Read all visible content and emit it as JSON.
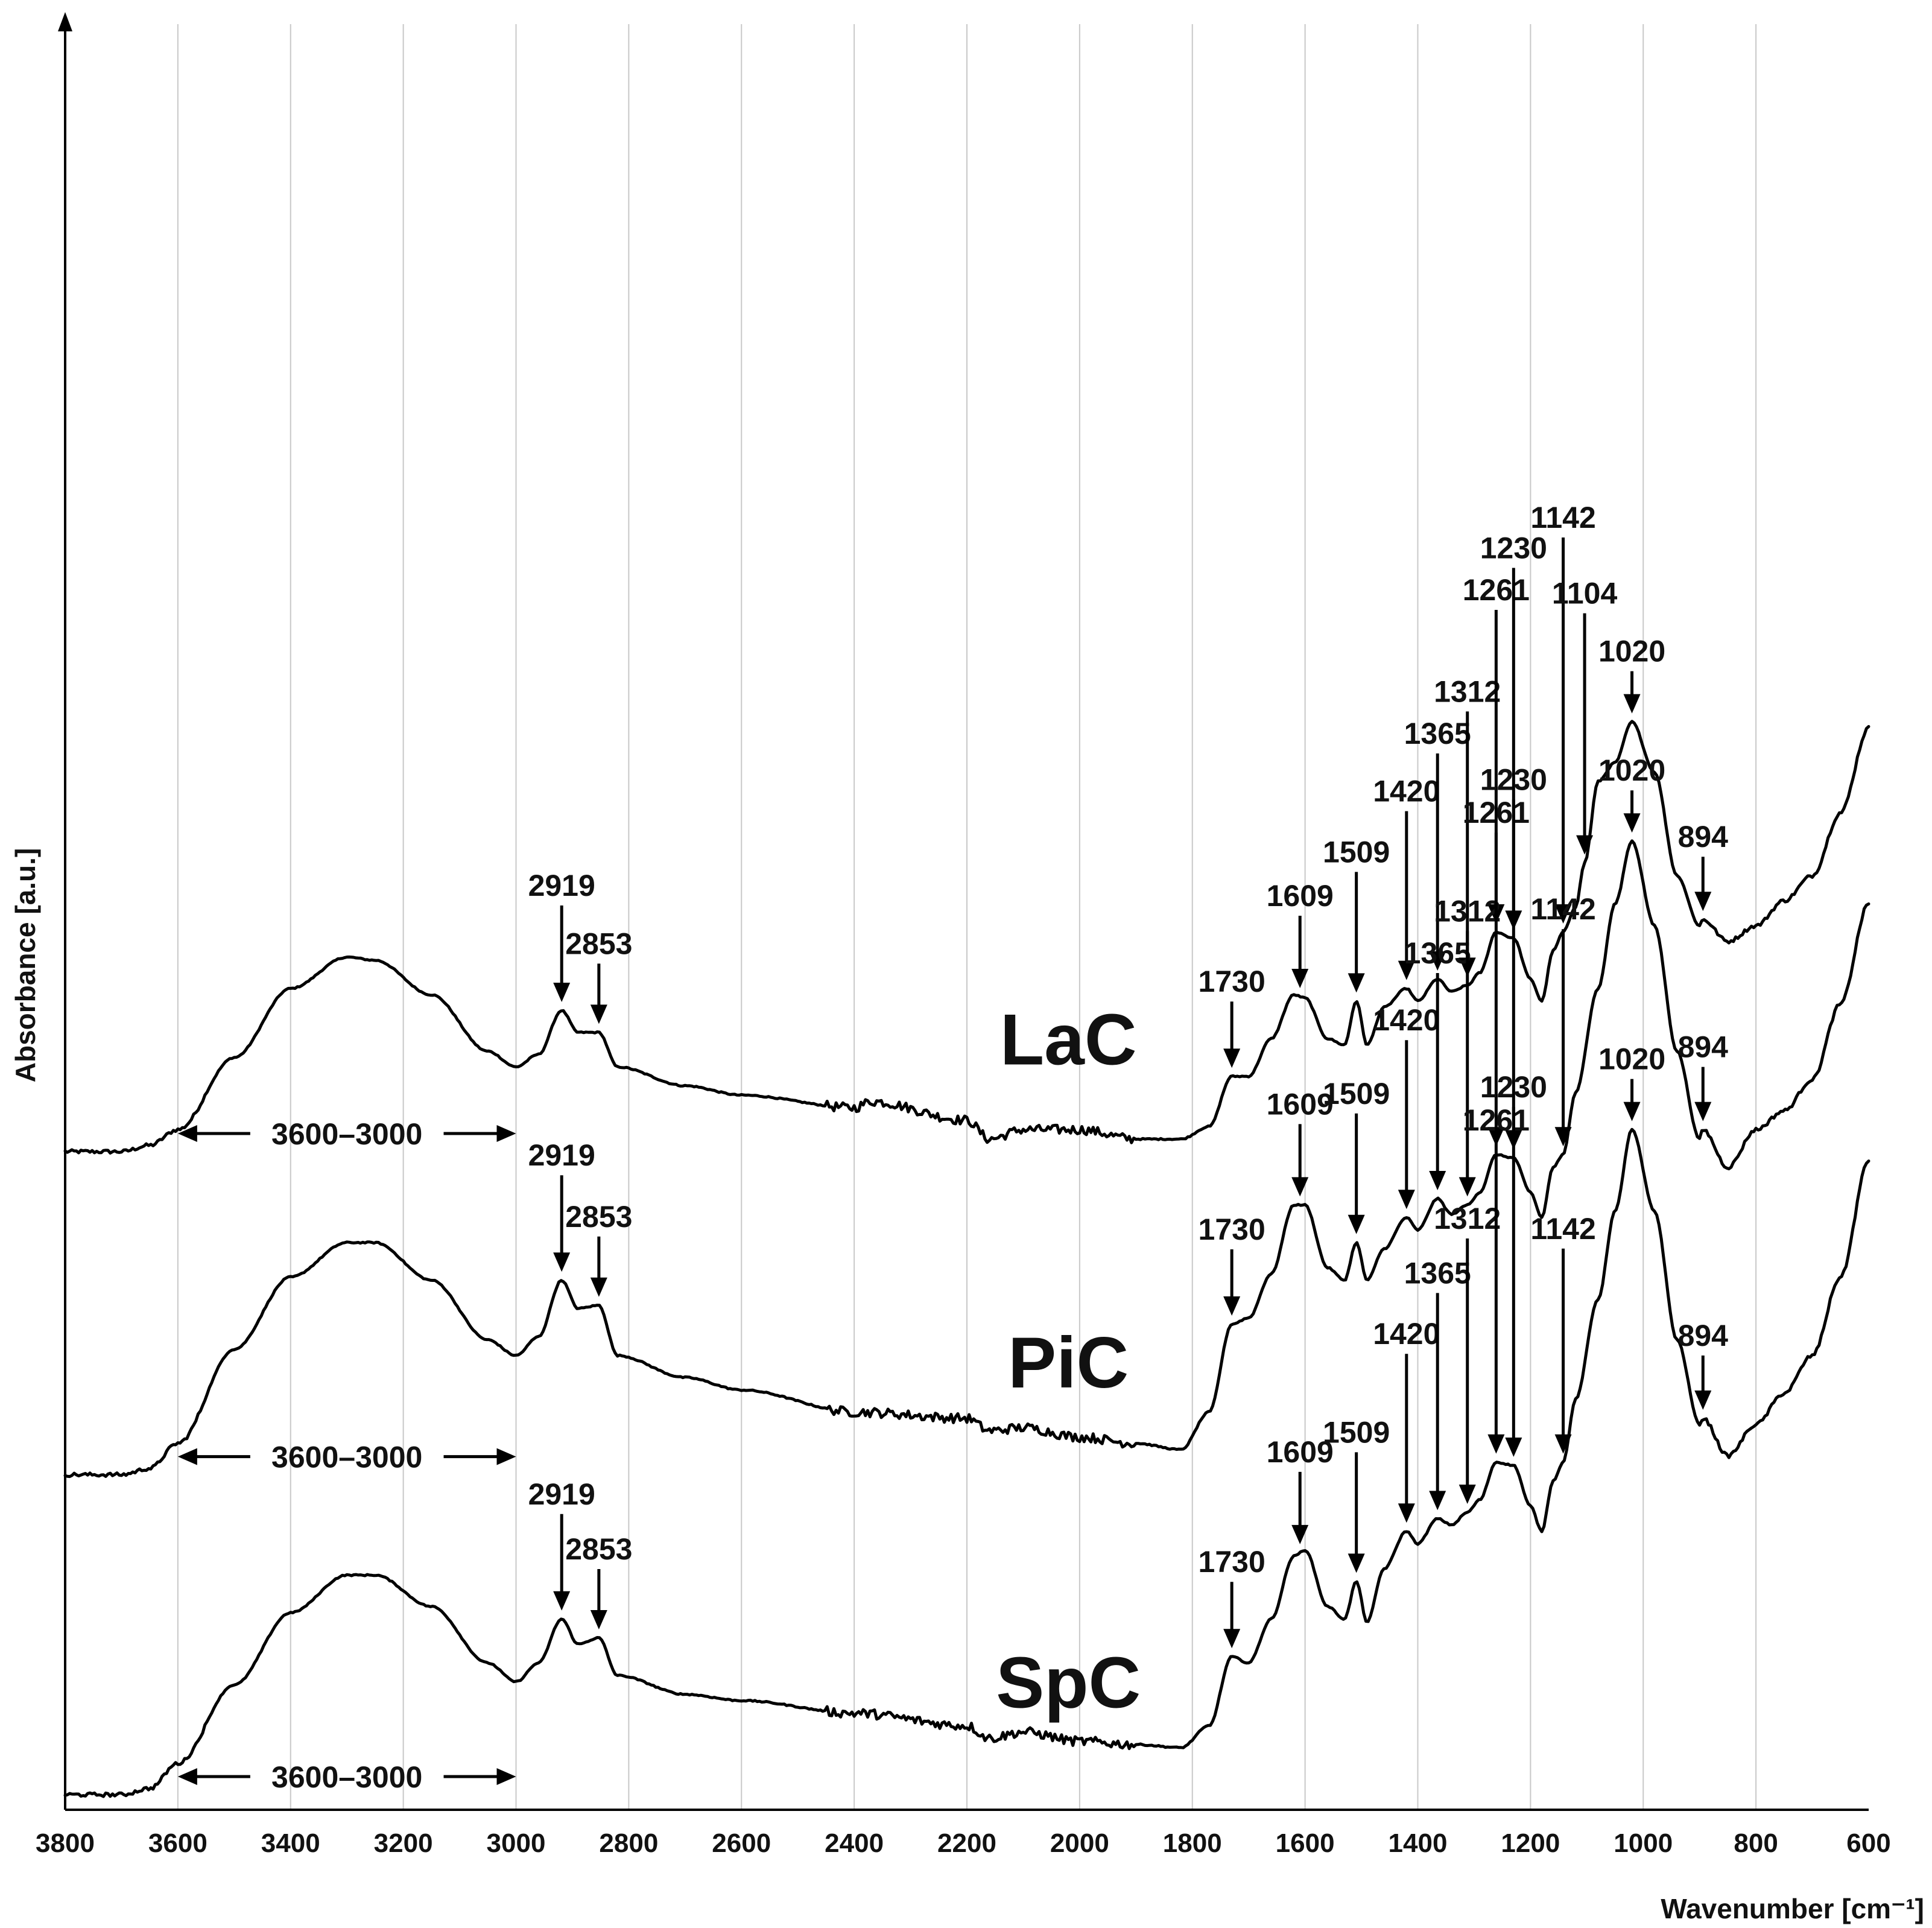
{
  "chart_data": {
    "type": "line",
    "title": "",
    "xlabel": "Wavenumber [cm⁻¹]",
    "ylabel": "Absorbance [a.u.]",
    "xlim": [
      3800,
      600
    ],
    "x_reversed": true,
    "grid": true,
    "x_ticks": [
      "3800",
      "3600",
      "3400",
      "3200",
      "3000",
      "2800",
      "2600",
      "2400",
      "2200",
      "2000",
      "1800",
      "1600",
      "1400",
      "1200",
      "1000",
      "800",
      "600"
    ],
    "x_tick_values": [
      3800,
      3600,
      3400,
      3200,
      3000,
      2800,
      2600,
      2400,
      2200,
      2000,
      1800,
      1600,
      1400,
      1200,
      1000,
      800,
      600
    ],
    "range_annotation": "3600–3000",
    "range_bounds": [
      3600,
      3000
    ],
    "series": [
      {
        "name": "LaC",
        "offset": 2.05,
        "points": [
          [
            3800,
            0.0
          ],
          [
            3700,
            0.0
          ],
          [
            3650,
            0.02
          ],
          [
            3600,
            0.07
          ],
          [
            3500,
            0.3
          ],
          [
            3400,
            0.52
          ],
          [
            3300,
            0.62
          ],
          [
            3250,
            0.61
          ],
          [
            3150,
            0.5
          ],
          [
            3050,
            0.32
          ],
          [
            3000,
            0.27
          ],
          [
            2960,
            0.31
          ],
          [
            2919,
            0.45
          ],
          [
            2890,
            0.38
          ],
          [
            2853,
            0.38
          ],
          [
            2820,
            0.27
          ],
          [
            2700,
            0.21
          ],
          [
            2600,
            0.18
          ],
          [
            2400,
            0.14
          ],
          [
            2370,
            0.16
          ],
          [
            2200,
            0.1
          ],
          [
            2160,
            0.04
          ],
          [
            2100,
            0.07
          ],
          [
            2000,
            0.07
          ],
          [
            1900,
            0.04
          ],
          [
            1820,
            0.04
          ],
          [
            1770,
            0.08
          ],
          [
            1730,
            0.24
          ],
          [
            1700,
            0.24
          ],
          [
            1660,
            0.36
          ],
          [
            1620,
            0.5
          ],
          [
            1600,
            0.49
          ],
          [
            1560,
            0.36
          ],
          [
            1530,
            0.34
          ],
          [
            1509,
            0.48
          ],
          [
            1490,
            0.34
          ],
          [
            1460,
            0.46
          ],
          [
            1420,
            0.52
          ],
          [
            1400,
            0.48
          ],
          [
            1365,
            0.55
          ],
          [
            1340,
            0.51
          ],
          [
            1312,
            0.53
          ],
          [
            1290,
            0.57
          ],
          [
            1261,
            0.7
          ],
          [
            1230,
            0.68
          ],
          [
            1200,
            0.55
          ],
          [
            1180,
            0.48
          ],
          [
            1160,
            0.64
          ],
          [
            1142,
            0.7
          ],
          [
            1120,
            0.78
          ],
          [
            1104,
            0.92
          ],
          [
            1080,
            1.18
          ],
          [
            1050,
            1.24
          ],
          [
            1020,
            1.37
          ],
          [
            980,
            1.21
          ],
          [
            940,
            0.88
          ],
          [
            900,
            0.72
          ],
          [
            894,
            0.74
          ],
          [
            850,
            0.67
          ],
          [
            800,
            0.72
          ],
          [
            750,
            0.8
          ],
          [
            700,
            0.88
          ],
          [
            650,
            1.08
          ],
          [
            600,
            1.35
          ]
        ]
      },
      {
        "name": "PiC",
        "offset": 1.02,
        "points": [
          [
            3800,
            0.0
          ],
          [
            3700,
            0.0
          ],
          [
            3650,
            0.02
          ],
          [
            3600,
            0.1
          ],
          [
            3500,
            0.4
          ],
          [
            3400,
            0.63
          ],
          [
            3300,
            0.74
          ],
          [
            3250,
            0.74
          ],
          [
            3150,
            0.62
          ],
          [
            3050,
            0.43
          ],
          [
            3000,
            0.38
          ],
          [
            2960,
            0.44
          ],
          [
            2919,
            0.62
          ],
          [
            2890,
            0.53
          ],
          [
            2853,
            0.54
          ],
          [
            2820,
            0.38
          ],
          [
            2700,
            0.31
          ],
          [
            2600,
            0.27
          ],
          [
            2400,
            0.2
          ],
          [
            2200,
            0.18
          ],
          [
            2160,
            0.14
          ],
          [
            2100,
            0.15
          ],
          [
            2000,
            0.12
          ],
          [
            1900,
            0.1
          ],
          [
            1820,
            0.08
          ],
          [
            1770,
            0.2
          ],
          [
            1730,
            0.48
          ],
          [
            1700,
            0.5
          ],
          [
            1660,
            0.64
          ],
          [
            1620,
            0.86
          ],
          [
            1600,
            0.86
          ],
          [
            1560,
            0.66
          ],
          [
            1530,
            0.62
          ],
          [
            1509,
            0.74
          ],
          [
            1490,
            0.62
          ],
          [
            1460,
            0.72
          ],
          [
            1420,
            0.82
          ],
          [
            1400,
            0.78
          ],
          [
            1365,
            0.88
          ],
          [
            1340,
            0.83
          ],
          [
            1312,
            0.86
          ],
          [
            1290,
            0.9
          ],
          [
            1261,
            1.02
          ],
          [
            1230,
            1.01
          ],
          [
            1200,
            0.9
          ],
          [
            1180,
            0.82
          ],
          [
            1160,
            0.98
          ],
          [
            1142,
            1.02
          ],
          [
            1120,
            1.22
          ],
          [
            1080,
            1.55
          ],
          [
            1050,
            1.82
          ],
          [
            1020,
            2.02
          ],
          [
            980,
            1.75
          ],
          [
            940,
            1.35
          ],
          [
            900,
            1.07
          ],
          [
            894,
            1.1
          ],
          [
            850,
            0.98
          ],
          [
            800,
            1.1
          ],
          [
            750,
            1.16
          ],
          [
            700,
            1.26
          ],
          [
            650,
            1.5
          ],
          [
            600,
            1.82
          ]
        ]
      },
      {
        "name": "SpC",
        "offset": 0.0,
        "points": [
          [
            3800,
            0.0
          ],
          [
            3700,
            0.0
          ],
          [
            3650,
            0.02
          ],
          [
            3600,
            0.1
          ],
          [
            3500,
            0.35
          ],
          [
            3400,
            0.58
          ],
          [
            3300,
            0.7
          ],
          [
            3250,
            0.7
          ],
          [
            3150,
            0.6
          ],
          [
            3050,
            0.42
          ],
          [
            3000,
            0.36
          ],
          [
            2960,
            0.42
          ],
          [
            2919,
            0.56
          ],
          [
            2890,
            0.48
          ],
          [
            2853,
            0.5
          ],
          [
            2820,
            0.38
          ],
          [
            2700,
            0.32
          ],
          [
            2600,
            0.3
          ],
          [
            2400,
            0.26
          ],
          [
            2200,
            0.22
          ],
          [
            2160,
            0.18
          ],
          [
            2100,
            0.2
          ],
          [
            2000,
            0.17
          ],
          [
            1900,
            0.16
          ],
          [
            1820,
            0.15
          ],
          [
            1770,
            0.22
          ],
          [
            1730,
            0.44
          ],
          [
            1700,
            0.42
          ],
          [
            1660,
            0.56
          ],
          [
            1620,
            0.76
          ],
          [
            1600,
            0.78
          ],
          [
            1560,
            0.6
          ],
          [
            1530,
            0.56
          ],
          [
            1509,
            0.68
          ],
          [
            1490,
            0.55
          ],
          [
            1460,
            0.72
          ],
          [
            1420,
            0.84
          ],
          [
            1400,
            0.8
          ],
          [
            1365,
            0.88
          ],
          [
            1340,
            0.86
          ],
          [
            1312,
            0.9
          ],
          [
            1290,
            0.94
          ],
          [
            1261,
            1.06
          ],
          [
            1230,
            1.05
          ],
          [
            1200,
            0.92
          ],
          [
            1180,
            0.84
          ],
          [
            1160,
            1.0
          ],
          [
            1142,
            1.06
          ],
          [
            1120,
            1.26
          ],
          [
            1080,
            1.58
          ],
          [
            1050,
            1.86
          ],
          [
            1020,
            2.12
          ],
          [
            980,
            1.86
          ],
          [
            940,
            1.45
          ],
          [
            900,
            1.18
          ],
          [
            894,
            1.2
          ],
          [
            850,
            1.08
          ],
          [
            800,
            1.18
          ],
          [
            750,
            1.28
          ],
          [
            700,
            1.4
          ],
          [
            650,
            1.65
          ],
          [
            600,
            2.02
          ]
        ]
      }
    ],
    "peak_annotations": [
      {
        "series": "LaC",
        "labels": [
          "2919",
          "2853",
          "1730",
          "1609",
          "1509",
          "1420",
          "1365",
          "1312",
          "1261",
          "1230",
          "1142",
          "1104",
          "1020",
          "894"
        ],
        "values": [
          2919,
          2853,
          1730,
          1609,
          1509,
          1420,
          1365,
          1312,
          1261,
          1230,
          1142,
          1104,
          1020,
          894
        ]
      },
      {
        "series": "PiC",
        "labels": [
          "2919",
          "2853",
          "1730",
          "1609",
          "1509",
          "1420",
          "1365",
          "1312",
          "1261",
          "1230",
          "1142",
          "1020",
          "894"
        ],
        "values": [
          2919,
          2853,
          1730,
          1609,
          1509,
          1420,
          1365,
          1312,
          1261,
          1230,
          1142,
          1020,
          894
        ]
      },
      {
        "series": "SpC",
        "labels": [
          "2919",
          "2853",
          "1730",
          "1609",
          "1509",
          "1420",
          "1365",
          "1312",
          "1261",
          "1230",
          "1142",
          "1020",
          "894"
        ],
        "values": [
          2919,
          2853,
          1730,
          1609,
          1509,
          1420,
          1365,
          1312,
          1261,
          1230,
          1142,
          1020,
          894
        ]
      }
    ]
  }
}
